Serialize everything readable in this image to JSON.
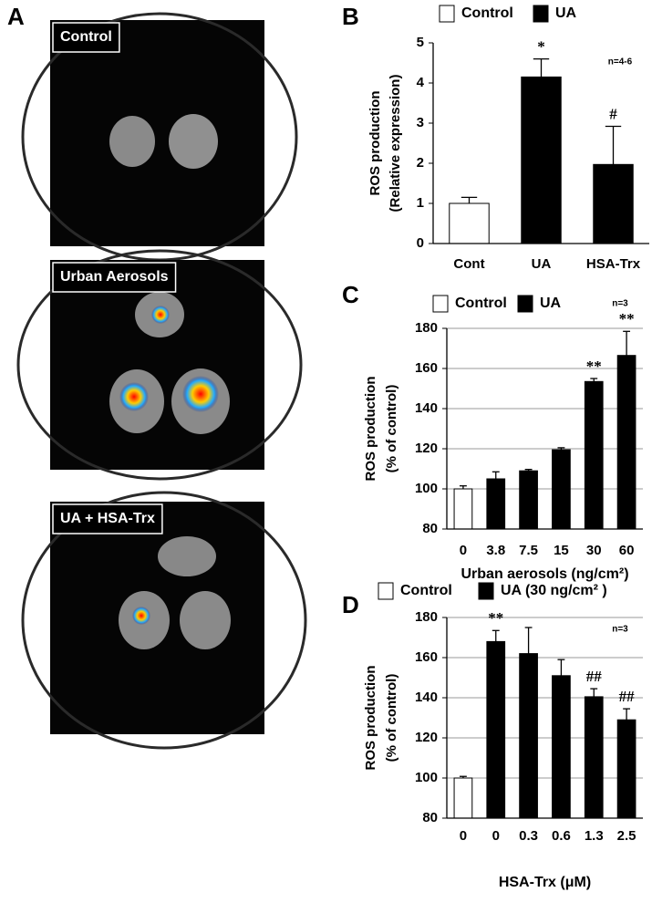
{
  "panels": {
    "letters": [
      "A",
      "B",
      "C",
      "D"
    ],
    "image_labels": [
      "Control",
      "Urban Aerosols",
      "UA + HSA-Trx"
    ]
  },
  "chart_data": [
    {
      "type": "bar",
      "categories": [
        "Cont",
        "UA",
        "HSA-Trx"
      ],
      "values": [
        1,
        4.15,
        1.97
      ],
      "errors": [
        0.15,
        0.45,
        0.95
      ],
      "colors": [
        "#ffffff",
        "#000000",
        "#000000"
      ],
      "significance": [
        null,
        "*",
        "#"
      ],
      "legend": [
        {
          "name": "Control",
          "color": "#ffffff"
        },
        {
          "name": "UA",
          "color": "#000000"
        }
      ],
      "ylabel": [
        "ROS production",
        "(Relative expression)"
      ],
      "note": "n=4-6",
      "ylim": [
        0,
        5
      ],
      "yticks": [
        0,
        1,
        2,
        3,
        4,
        5
      ],
      "grid": false
    },
    {
      "type": "bar",
      "categories": [
        "0",
        "3.8",
        "7.5",
        "15",
        "30",
        "60"
      ],
      "values": [
        100,
        105,
        109,
        119.5,
        153.5,
        166.5
      ],
      "errors": [
        1.5,
        3.5,
        0.7,
        1,
        1.5,
        12
      ],
      "colors": [
        "#ffffff",
        "#000000",
        "#000000",
        "#000000",
        "#000000",
        "#000000"
      ],
      "significance": [
        null,
        null,
        null,
        null,
        "**",
        "**"
      ],
      "legend": [
        {
          "name": "Control",
          "color": "#ffffff"
        },
        {
          "name": "UA",
          "color": "#000000"
        }
      ],
      "ylabel": [
        "ROS production",
        "(% of control)"
      ],
      "xlabel": "Urban aerosols (ng/cm²)",
      "note": "n=3",
      "ylim": [
        80,
        180
      ],
      "yticks": [
        80,
        100,
        120,
        140,
        160,
        180
      ],
      "grid": true
    },
    {
      "type": "bar",
      "categories": [
        "0",
        "0",
        "0.3",
        "0.6",
        "1.3",
        "2.5"
      ],
      "values": [
        100,
        168,
        162,
        151,
        140.5,
        129
      ],
      "errors": [
        0.8,
        5.5,
        13,
        8,
        4,
        5.5
      ],
      "colors": [
        "#ffffff",
        "#000000",
        "#000000",
        "#000000",
        "#000000",
        "#000000"
      ],
      "significance": [
        null,
        "**",
        null,
        null,
        "##",
        "##"
      ],
      "legend": [
        {
          "name": "Control",
          "color": "#ffffff"
        },
        {
          "name": "UA (30 ng/cm² )",
          "color": "#000000"
        }
      ],
      "ylabel": [
        "ROS production",
        "(% of control)"
      ],
      "xlabel": "HSA-Trx (μM)",
      "note": "n=3",
      "ylim": [
        80,
        180
      ],
      "yticks": [
        80,
        100,
        120,
        140,
        160,
        180
      ],
      "grid": true
    }
  ]
}
